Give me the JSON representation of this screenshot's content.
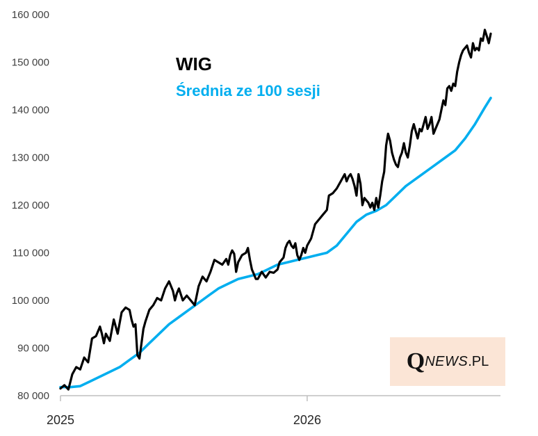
{
  "chart_data": {
    "type": "line",
    "title": "",
    "xlabel": "",
    "ylabel": "",
    "ylim": [
      80000,
      160000
    ],
    "y_ticks": [
      "80 000",
      "90 000",
      "100 000",
      "110 000",
      "120 000",
      "130 000",
      "140 000",
      "150 000",
      "160 000"
    ],
    "x_ticks": [
      "2025",
      "2026"
    ],
    "x_unit": "trading sessions",
    "x_range": [
      0,
      436
    ],
    "x_tick_positions": [
      0,
      250
    ],
    "grid": false,
    "legend_placement": "top-left",
    "series": [
      {
        "name": "WIG",
        "color": "#000000",
        "points": [
          [
            0,
            81500
          ],
          [
            4,
            82200
          ],
          [
            8,
            81300
          ],
          [
            12,
            84500
          ],
          [
            16,
            86000
          ],
          [
            20,
            85500
          ],
          [
            24,
            88000
          ],
          [
            28,
            87000
          ],
          [
            32,
            92000
          ],
          [
            36,
            92500
          ],
          [
            40,
            94500
          ],
          [
            42,
            93000
          ],
          [
            44,
            91000
          ],
          [
            46,
            93000
          ],
          [
            50,
            91500
          ],
          [
            54,
            96000
          ],
          [
            58,
            93000
          ],
          [
            62,
            97500
          ],
          [
            66,
            98500
          ],
          [
            70,
            98000
          ],
          [
            72,
            96000
          ],
          [
            74,
            94500
          ],
          [
            76,
            95000
          ],
          [
            78,
            88500
          ],
          [
            80,
            87800
          ],
          [
            84,
            94000
          ],
          [
            86,
            95500
          ],
          [
            90,
            98000
          ],
          [
            94,
            99000
          ],
          [
            98,
            100500
          ],
          [
            102,
            100000
          ],
          [
            106,
            102500
          ],
          [
            110,
            104000
          ],
          [
            114,
            102000
          ],
          [
            116,
            100000
          ],
          [
            118,
            101500
          ],
          [
            120,
            102500
          ],
          [
            124,
            100000
          ],
          [
            128,
            101000
          ],
          [
            132,
            100000
          ],
          [
            136,
            99000
          ],
          [
            140,
            103000
          ],
          [
            144,
            105000
          ],
          [
            148,
            104000
          ],
          [
            152,
            106000
          ],
          [
            156,
            108500
          ],
          [
            160,
            108000
          ],
          [
            164,
            107500
          ],
          [
            168,
            108700
          ],
          [
            170,
            107500
          ],
          [
            172,
            109500
          ],
          [
            174,
            110500
          ],
          [
            176,
            109800
          ],
          [
            178,
            106000
          ],
          [
            180,
            108000
          ],
          [
            184,
            109500
          ],
          [
            188,
            110000
          ],
          [
            190,
            111000
          ],
          [
            192,
            108500
          ],
          [
            194,
            106500
          ],
          [
            196,
            105500
          ],
          [
            198,
            104500
          ],
          [
            200,
            104500
          ],
          [
            204,
            106000
          ],
          [
            208,
            104800
          ],
          [
            212,
            106000
          ],
          [
            216,
            105800
          ],
          [
            220,
            106500
          ],
          [
            222,
            108000
          ],
          [
            226,
            109000
          ],
          [
            228,
            111000
          ],
          [
            230,
            112000
          ],
          [
            232,
            112500
          ],
          [
            234,
            111500
          ],
          [
            236,
            111000
          ],
          [
            238,
            112000
          ],
          [
            240,
            109500
          ],
          [
            242,
            108500
          ],
          [
            244,
            109500
          ],
          [
            246,
            111000
          ],
          [
            248,
            110000
          ],
          [
            250,
            111500
          ],
          [
            254,
            113000
          ],
          [
            258,
            116000
          ],
          [
            262,
            117000
          ],
          [
            266,
            118000
          ],
          [
            270,
            119000
          ],
          [
            272,
            122000
          ],
          [
            276,
            122500
          ],
          [
            280,
            123500
          ],
          [
            284,
            125000
          ],
          [
            288,
            126500
          ],
          [
            290,
            125000
          ],
          [
            292,
            126000
          ],
          [
            294,
            126500
          ],
          [
            296,
            125500
          ],
          [
            298,
            124000
          ],
          [
            300,
            122000
          ],
          [
            302,
            126500
          ],
          [
            304,
            124500
          ],
          [
            306,
            120000
          ],
          [
            308,
            121500
          ],
          [
            310,
            121000
          ],
          [
            312,
            120500
          ],
          [
            314,
            119500
          ],
          [
            316,
            120500
          ],
          [
            318,
            119000
          ],
          [
            320,
            121500
          ],
          [
            322,
            119500
          ],
          [
            324,
            122000
          ],
          [
            326,
            125000
          ],
          [
            328,
            127000
          ],
          [
            330,
            132500
          ],
          [
            332,
            135000
          ],
          [
            334,
            133500
          ],
          [
            336,
            131000
          ],
          [
            338,
            129500
          ],
          [
            340,
            128500
          ],
          [
            342,
            128000
          ],
          [
            344,
            130000
          ],
          [
            346,
            131000
          ],
          [
            348,
            133000
          ],
          [
            350,
            131000
          ],
          [
            352,
            130000
          ],
          [
            354,
            132500
          ],
          [
            356,
            135500
          ],
          [
            358,
            137000
          ],
          [
            360,
            135500
          ],
          [
            362,
            134000
          ],
          [
            364,
            136000
          ],
          [
            366,
            135500
          ],
          [
            368,
            137000
          ],
          [
            370,
            138500
          ],
          [
            372,
            136000
          ],
          [
            374,
            137000
          ],
          [
            376,
            138500
          ],
          [
            378,
            135000
          ],
          [
            380,
            136000
          ],
          [
            382,
            137000
          ],
          [
            384,
            138000
          ],
          [
            386,
            140000
          ],
          [
            388,
            142000
          ],
          [
            390,
            141000
          ],
          [
            392,
            144500
          ],
          [
            394,
            145000
          ],
          [
            396,
            144000
          ],
          [
            398,
            145500
          ],
          [
            400,
            145000
          ],
          [
            402,
            148000
          ],
          [
            404,
            150000
          ],
          [
            406,
            151500
          ],
          [
            408,
            152500
          ],
          [
            410,
            153000
          ],
          [
            412,
            153500
          ],
          [
            414,
            152000
          ],
          [
            416,
            151000
          ],
          [
            418,
            154000
          ],
          [
            420,
            152500
          ],
          [
            422,
            153000
          ],
          [
            424,
            152500
          ],
          [
            426,
            155000
          ],
          [
            428,
            154500
          ],
          [
            430,
            156800
          ],
          [
            432,
            155500
          ],
          [
            434,
            154000
          ],
          [
            436,
            156000
          ]
        ]
      },
      {
        "name": "Średnia ze 100 sesji",
        "color": "#00AEEF",
        "points": [
          [
            0,
            81800
          ],
          [
            10,
            81800
          ],
          [
            20,
            82000
          ],
          [
            30,
            83000
          ],
          [
            40,
            84000
          ],
          [
            50,
            85000
          ],
          [
            60,
            86000
          ],
          [
            70,
            87500
          ],
          [
            80,
            89000
          ],
          [
            90,
            91000
          ],
          [
            100,
            93000
          ],
          [
            110,
            95000
          ],
          [
            120,
            96500
          ],
          [
            130,
            98000
          ],
          [
            140,
            99500
          ],
          [
            150,
            101000
          ],
          [
            160,
            102500
          ],
          [
            170,
            103500
          ],
          [
            180,
            104500
          ],
          [
            190,
            105000
          ],
          [
            200,
            105500
          ],
          [
            210,
            106500
          ],
          [
            220,
            107500
          ],
          [
            230,
            108000
          ],
          [
            240,
            108500
          ],
          [
            250,
            109000
          ],
          [
            260,
            109500
          ],
          [
            270,
            110000
          ],
          [
            280,
            111500
          ],
          [
            290,
            114000
          ],
          [
            300,
            116500
          ],
          [
            310,
            118000
          ],
          [
            320,
            118800
          ],
          [
            330,
            120000
          ],
          [
            340,
            122000
          ],
          [
            350,
            124000
          ],
          [
            360,
            125500
          ],
          [
            370,
            127000
          ],
          [
            380,
            128500
          ],
          [
            390,
            130000
          ],
          [
            400,
            131500
          ],
          [
            410,
            134000
          ],
          [
            420,
            137000
          ],
          [
            430,
            140500
          ],
          [
            436,
            142500
          ]
        ]
      }
    ]
  }
}
